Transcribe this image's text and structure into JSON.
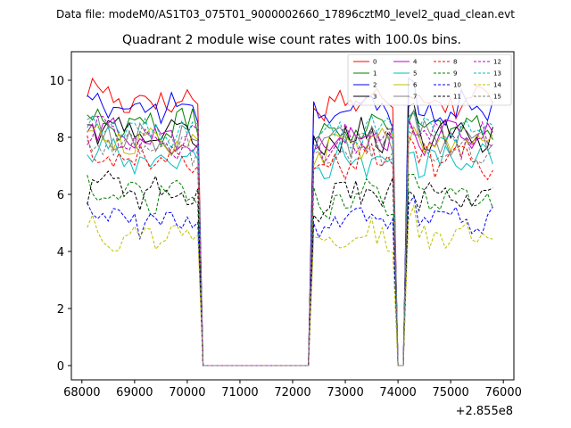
{
  "figure": {
    "suptitle": "Data file: modeM0/AS1T03_075T01_9000002660_17896cztM0_level2_quad_clean.evt"
  },
  "chart_data": {
    "type": "line",
    "title": "Quadrant 2 module wise count rates with 100.0s bins.",
    "xlabel": "",
    "ylabel": "",
    "x_offset_label": "+2.855e8",
    "xlim": [
      67800,
      76200
    ],
    "ylim": [
      -0.5,
      11.0
    ],
    "xticks": [
      68000,
      69000,
      70000,
      71000,
      72000,
      73000,
      74000,
      75000,
      76000
    ],
    "xtick_labels": [
      "68000",
      "69000",
      "70000",
      "71000",
      "72000",
      "73000",
      "74000",
      "75000",
      "76000"
    ],
    "yticks": [
      0,
      2,
      4,
      6,
      8,
      10
    ],
    "ytick_labels": [
      "0",
      "2",
      "4",
      "6",
      "8",
      "10"
    ],
    "gaps": [
      [
        70250,
        72300
      ],
      [
        74000,
        74150
      ]
    ],
    "series": [
      {
        "name": "0",
        "color": "#ff0000",
        "dash": "solid",
        "level": 9.3
      },
      {
        "name": "1",
        "color": "#008000",
        "dash": "solid",
        "level": 8.4
      },
      {
        "name": "2",
        "color": "#0000ff",
        "dash": "solid",
        "level": 9.0
      },
      {
        "name": "3",
        "color": "#000000",
        "dash": "solid",
        "level": 8.1
      },
      {
        "name": "4",
        "color": "#bf00bf",
        "dash": "solid",
        "level": 8.0
      },
      {
        "name": "5",
        "color": "#00bfbf",
        "dash": "solid",
        "level": 7.2
      },
      {
        "name": "6",
        "color": "#bfbf00",
        "dash": "solid",
        "level": 7.8
      },
      {
        "name": "7",
        "color": "#808080",
        "dash": "solid",
        "level": 7.9
      },
      {
        "name": "8",
        "color": "#ff0000",
        "dash": "dashed",
        "level": 7.2
      },
      {
        "name": "9",
        "color": "#008000",
        "dash": "dashed",
        "level": 5.9
      },
      {
        "name": "10",
        "color": "#0000ff",
        "dash": "dashed",
        "level": 5.1
      },
      {
        "name": "11",
        "color": "#000000",
        "dash": "dashed",
        "level": 6.0
      },
      {
        "name": "12",
        "color": "#bf00bf",
        "dash": "dashed",
        "level": 7.9
      },
      {
        "name": "13",
        "color": "#00bfbf",
        "dash": "dashed",
        "level": 8.2
      },
      {
        "name": "14",
        "color": "#bfbf00",
        "dash": "dashed",
        "level": 4.5
      },
      {
        "name": "15",
        "color": "#808080",
        "dash": "dashed",
        "level": 7.6
      }
    ]
  }
}
